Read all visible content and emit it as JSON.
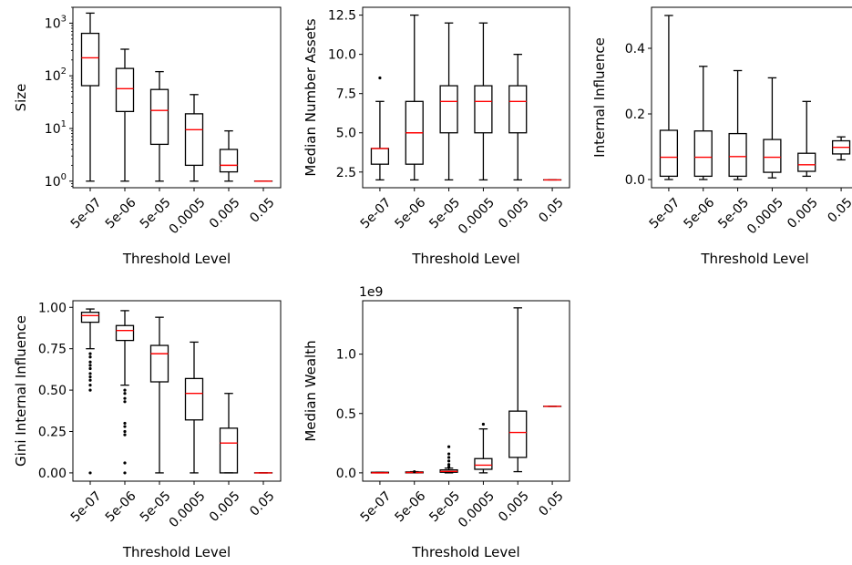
{
  "colors": {
    "box": "#000000",
    "median": "#ff0000",
    "background": "#ffffff"
  },
  "chart_data": [
    {
      "type": "box",
      "xlabel": "Threshold Level",
      "ylabel": "Size",
      "yscale": "log",
      "ylim": [
        0.75,
        2000
      ],
      "yticks": [
        {
          "value": 1,
          "label": "10^0"
        },
        {
          "value": 10,
          "label": "10^1"
        },
        {
          "value": 100,
          "label": "10^2"
        },
        {
          "value": 1000,
          "label": "10^3"
        }
      ],
      "categories": [
        "5e-07",
        "5e-06",
        "5e-05",
        "0.0005",
        "0.005",
        "0.05"
      ],
      "boxes": [
        {
          "whislo": 1,
          "q1": 65,
          "med": 220,
          "q3": 640,
          "whishi": 1550,
          "fliers": []
        },
        {
          "whislo": 1,
          "q1": 21,
          "med": 57,
          "q3": 138,
          "whishi": 320,
          "fliers": []
        },
        {
          "whislo": 1,
          "q1": 5,
          "med": 22,
          "q3": 55,
          "whishi": 120,
          "fliers": []
        },
        {
          "whislo": 1,
          "q1": 2,
          "med": 9.5,
          "q3": 19,
          "whishi": 44,
          "fliers": []
        },
        {
          "whislo": 1,
          "q1": 1.5,
          "med": 2,
          "q3": 4,
          "whishi": 9,
          "fliers": []
        },
        {
          "whislo": 1,
          "q1": 1,
          "med": 1,
          "q3": 1,
          "whishi": 1,
          "fliers": []
        }
      ]
    },
    {
      "type": "box",
      "xlabel": "Threshold Level",
      "ylabel": "Median Number Assets",
      "yscale": "linear",
      "ylim": [
        1.5,
        13
      ],
      "yticks": [
        {
          "value": 2.5,
          "label": "2.5"
        },
        {
          "value": 5.0,
          "label": "5.0"
        },
        {
          "value": 7.5,
          "label": "7.5"
        },
        {
          "value": 10.0,
          "label": "10.0"
        },
        {
          "value": 12.5,
          "label": "12.5"
        }
      ],
      "categories": [
        "5e-07",
        "5e-06",
        "5e-05",
        "0.0005",
        "0.005",
        "0.05"
      ],
      "boxes": [
        {
          "whislo": 2,
          "q1": 3,
          "med": 4,
          "q3": 4,
          "whishi": 7,
          "fliers": [
            8.5
          ]
        },
        {
          "whislo": 2,
          "q1": 3,
          "med": 5,
          "q3": 7,
          "whishi": 12.5,
          "fliers": []
        },
        {
          "whislo": 2,
          "q1": 5,
          "med": 7,
          "q3": 8,
          "whishi": 12,
          "fliers": []
        },
        {
          "whislo": 2,
          "q1": 5,
          "med": 7,
          "q3": 8,
          "whishi": 12,
          "fliers": []
        },
        {
          "whislo": 2,
          "q1": 5,
          "med": 7,
          "q3": 8,
          "whishi": 10,
          "fliers": []
        },
        {
          "whislo": 2,
          "q1": 2,
          "med": 2,
          "q3": 2,
          "whishi": 2,
          "fliers": []
        }
      ]
    },
    {
      "type": "box",
      "xlabel": "Threshold Level",
      "ylabel": "Internal Influence",
      "yscale": "linear",
      "ylim": [
        -0.025,
        0.525
      ],
      "yticks": [
        {
          "value": 0.0,
          "label": "0.0"
        },
        {
          "value": 0.2,
          "label": "0.2"
        },
        {
          "value": 0.4,
          "label": "0.4"
        }
      ],
      "categories": [
        "5e-07",
        "5e-06",
        "5e-05",
        "0.0005",
        "0.005",
        "0.05"
      ],
      "boxes": [
        {
          "whislo": 0.0,
          "q1": 0.01,
          "med": 0.068,
          "q3": 0.15,
          "whishi": 0.5,
          "fliers": []
        },
        {
          "whislo": 0.0,
          "q1": 0.01,
          "med": 0.068,
          "q3": 0.148,
          "whishi": 0.345,
          "fliers": []
        },
        {
          "whislo": 0.0,
          "q1": 0.01,
          "med": 0.07,
          "q3": 0.14,
          "whishi": 0.332,
          "fliers": []
        },
        {
          "whislo": 0.005,
          "q1": 0.022,
          "med": 0.068,
          "q3": 0.122,
          "whishi": 0.31,
          "fliers": []
        },
        {
          "whislo": 0.01,
          "q1": 0.025,
          "med": 0.045,
          "q3": 0.08,
          "whishi": 0.238,
          "fliers": []
        },
        {
          "whislo": 0.06,
          "q1": 0.078,
          "med": 0.098,
          "q3": 0.118,
          "whishi": 0.13,
          "fliers": []
        }
      ]
    },
    {
      "type": "box",
      "xlabel": "Threshold Level",
      "ylabel": "Gini Internal Influence",
      "yscale": "linear",
      "ylim": [
        -0.05,
        1.04
      ],
      "yticks": [
        {
          "value": 0.0,
          "label": "0.00"
        },
        {
          "value": 0.25,
          "label": "0.25"
        },
        {
          "value": 0.5,
          "label": "0.50"
        },
        {
          "value": 0.75,
          "label": "0.75"
        },
        {
          "value": 1.0,
          "label": "1.00"
        }
      ],
      "categories": [
        "5e-07",
        "5e-06",
        "5e-05",
        "0.0005",
        "0.005",
        "0.05"
      ],
      "boxes": [
        {
          "whislo": 0.75,
          "q1": 0.91,
          "med": 0.95,
          "q3": 0.97,
          "whishi": 0.99,
          "fliers": [
            0.72,
            0.7,
            0.67,
            0.65,
            0.63,
            0.6,
            0.58,
            0.56,
            0.53,
            0.5,
            0.0
          ]
        },
        {
          "whislo": 0.53,
          "q1": 0.8,
          "med": 0.86,
          "q3": 0.89,
          "whishi": 0.98,
          "fliers": [
            0.5,
            0.48,
            0.45,
            0.43,
            0.3,
            0.28,
            0.25,
            0.23,
            0.06,
            0.0
          ]
        },
        {
          "whislo": 0.0,
          "q1": 0.55,
          "med": 0.72,
          "q3": 0.77,
          "whishi": 0.94,
          "fliers": []
        },
        {
          "whislo": 0.0,
          "q1": 0.32,
          "med": 0.48,
          "q3": 0.57,
          "whishi": 0.79,
          "fliers": []
        },
        {
          "whislo": 0.0,
          "q1": 0.0,
          "med": 0.18,
          "q3": 0.27,
          "whishi": 0.48,
          "fliers": []
        },
        {
          "whislo": 0.0,
          "q1": 0.0,
          "med": 0.0,
          "q3": 0.0,
          "whishi": 0.0,
          "fliers": []
        }
      ]
    },
    {
      "type": "box",
      "xlabel": "Threshold Level",
      "ylabel": "Median Wealth",
      "offset_label": "1e9",
      "yscale": "linear",
      "ylim": [
        -0.07,
        1.45
      ],
      "yticks": [
        {
          "value": 0.0,
          "label": "0.0"
        },
        {
          "value": 0.5,
          "label": "0.5"
        },
        {
          "value": 1.0,
          "label": "1.0"
        }
      ],
      "categories": [
        "5e-07",
        "5e-06",
        "5e-05",
        "0.0005",
        "0.005",
        "0.05"
      ],
      "boxes": [
        {
          "whislo": 0.0,
          "q1": 0.0,
          "med": 0.0,
          "q3": 0.005,
          "whishi": 0.005,
          "fliers": []
        },
        {
          "whislo": 0.0,
          "q1": 0.0,
          "med": 0.003,
          "q3": 0.008,
          "whishi": 0.01,
          "fliers": [
            0.01
          ]
        },
        {
          "whislo": 0.0,
          "q1": 0.005,
          "med": 0.012,
          "q3": 0.025,
          "whishi": 0.04,
          "fliers": [
            0.05,
            0.07,
            0.1,
            0.13,
            0.16,
            0.22
          ]
        },
        {
          "whislo": 0.0,
          "q1": 0.03,
          "med": 0.065,
          "q3": 0.12,
          "whishi": 0.37,
          "fliers": [
            0.41
          ]
        },
        {
          "whislo": 0.01,
          "q1": 0.13,
          "med": 0.34,
          "q3": 0.52,
          "whishi": 1.39,
          "fliers": []
        },
        {
          "whislo": 0.56,
          "q1": 0.56,
          "med": 0.56,
          "q3": 0.56,
          "whishi": 0.56,
          "fliers": []
        }
      ]
    }
  ]
}
